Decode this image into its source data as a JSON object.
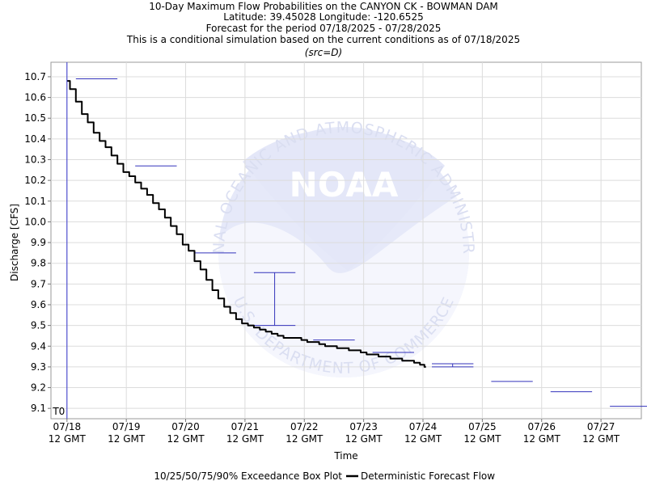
{
  "chart_data": {
    "type": "line",
    "title_lines": [
      "10-Day Maximum Flow Probabilities on the CANYON CK - BOWMAN DAM",
      "Latitude: 39.45028 Longitude: -120.6525",
      "Forecast for the period 07/18/2025 - 07/28/2025",
      "This is a conditional simulation based on the current conditions as of 07/18/2025"
    ],
    "source_note": "(src=D)",
    "xlabel": "Time",
    "ylabel": "Discharge [CFS]",
    "ylim": [
      9.05,
      10.77
    ],
    "y_ticks": [
      9.1,
      9.2,
      9.3,
      9.4,
      9.5,
      9.6,
      9.7,
      9.8,
      9.9,
      10.0,
      10.1,
      10.2,
      10.3,
      10.4,
      10.5,
      10.6,
      10.7
    ],
    "xlim_days": [
      -0.27,
      9.68
    ],
    "x_ticks": [
      {
        "line1": "07/18",
        "line2": "12 GMT"
      },
      {
        "line1": "07/19",
        "line2": "12 GMT"
      },
      {
        "line1": "07/20",
        "line2": "12 GMT"
      },
      {
        "line1": "07/21",
        "line2": "12 GMT"
      },
      {
        "line1": "07/22",
        "line2": "12 GMT"
      },
      {
        "line1": "07/23",
        "line2": "12 GMT"
      },
      {
        "line1": "07/24",
        "line2": "12 GMT"
      },
      {
        "line1": "07/25",
        "line2": "12 GMT"
      },
      {
        "line1": "07/26",
        "line2": "12 GMT"
      },
      {
        "line1": "07/27",
        "line2": "12 GMT"
      }
    ],
    "t0_label": "T0",
    "grid": true,
    "series": [
      {
        "name": "Deterministic Forecast Flow",
        "color": "#000000",
        "points": [
          [
            0.0,
            10.68
          ],
          [
            0.1,
            10.64
          ],
          [
            0.2,
            10.58
          ],
          [
            0.3,
            10.52
          ],
          [
            0.4,
            10.48
          ],
          [
            0.5,
            10.43
          ],
          [
            0.6,
            10.39
          ],
          [
            0.7,
            10.36
          ],
          [
            0.8,
            10.32
          ],
          [
            0.9,
            10.28
          ],
          [
            1.0,
            10.24
          ],
          [
            1.1,
            10.22
          ],
          [
            1.2,
            10.19
          ],
          [
            1.3,
            10.16
          ],
          [
            1.4,
            10.13
          ],
          [
            1.5,
            10.09
          ],
          [
            1.6,
            10.06
          ],
          [
            1.7,
            10.02
          ],
          [
            1.8,
            9.98
          ],
          [
            1.9,
            9.94
          ],
          [
            2.0,
            9.89
          ],
          [
            2.1,
            9.86
          ],
          [
            2.2,
            9.81
          ],
          [
            2.3,
            9.77
          ],
          [
            2.4,
            9.72
          ],
          [
            2.5,
            9.67
          ],
          [
            2.6,
            9.63
          ],
          [
            2.7,
            9.59
          ],
          [
            2.8,
            9.56
          ],
          [
            2.9,
            9.53
          ],
          [
            3.0,
            9.51
          ],
          [
            3.1,
            9.5
          ],
          [
            3.2,
            9.49
          ],
          [
            3.3,
            9.48
          ],
          [
            3.4,
            9.47
          ],
          [
            3.5,
            9.46
          ],
          [
            3.6,
            9.45
          ],
          [
            3.7,
            9.44
          ],
          [
            3.8,
            9.44
          ],
          [
            3.9,
            9.44
          ],
          [
            4.0,
            9.43
          ],
          [
            4.1,
            9.42
          ],
          [
            4.2,
            9.42
          ],
          [
            4.3,
            9.41
          ],
          [
            4.4,
            9.4
          ],
          [
            4.5,
            9.4
          ],
          [
            4.6,
            9.39
          ],
          [
            4.7,
            9.39
          ],
          [
            4.8,
            9.38
          ],
          [
            4.9,
            9.38
          ],
          [
            5.0,
            9.37
          ],
          [
            5.1,
            9.36
          ],
          [
            5.2,
            9.36
          ],
          [
            5.3,
            9.35
          ],
          [
            5.4,
            9.35
          ],
          [
            5.5,
            9.34
          ],
          [
            5.6,
            9.34
          ],
          [
            5.7,
            9.33
          ],
          [
            5.8,
            9.33
          ],
          [
            5.9,
            9.32
          ],
          [
            6.0,
            9.31
          ],
          [
            6.05,
            9.3
          ]
        ]
      }
    ],
    "exceedance": {
      "name": "10/25/50/75/90% Exceedance Box Plot",
      "color": "#3333bb",
      "boxes": [
        {
          "x_start": 0.15,
          "x_end": 0.85,
          "low": 10.69,
          "high": 10.69
        },
        {
          "x_start": 1.15,
          "x_end": 1.85,
          "low": 10.27,
          "high": 10.27
        },
        {
          "x_start": 2.15,
          "x_end": 2.85,
          "low": 9.85,
          "high": 9.85
        },
        {
          "x_start": 3.15,
          "x_end": 3.85,
          "low": 9.5,
          "high": 9.755
        },
        {
          "x_start": 4.15,
          "x_end": 4.85,
          "low": 9.43,
          "high": 9.43
        },
        {
          "x_start": 5.15,
          "x_end": 5.85,
          "low": 9.37,
          "high": 9.37
        },
        {
          "x_start": 6.15,
          "x_end": 6.85,
          "low": 9.3,
          "high": 9.315
        },
        {
          "x_start": 7.15,
          "x_end": 7.85,
          "low": 9.23,
          "high": 9.23
        },
        {
          "x_start": 8.15,
          "x_end": 8.85,
          "low": 9.18,
          "high": 9.18
        },
        {
          "x_start": 9.15,
          "x_end": 9.85,
          "low": 9.11,
          "high": 9.11
        }
      ]
    },
    "legend": {
      "placement": "bottom",
      "box_label": "10/25/50/75/90% Exceedance Box Plot",
      "line_label": "Deterministic Forecast Flow"
    },
    "watermark": {
      "center_text": "NOAA",
      "ring_top": "NATIONAL OCEANIC AND ATMOSPHERIC ADMINISTRATION",
      "ring_bottom": "U.S. DEPARTMENT OF COMMERCE"
    }
  }
}
